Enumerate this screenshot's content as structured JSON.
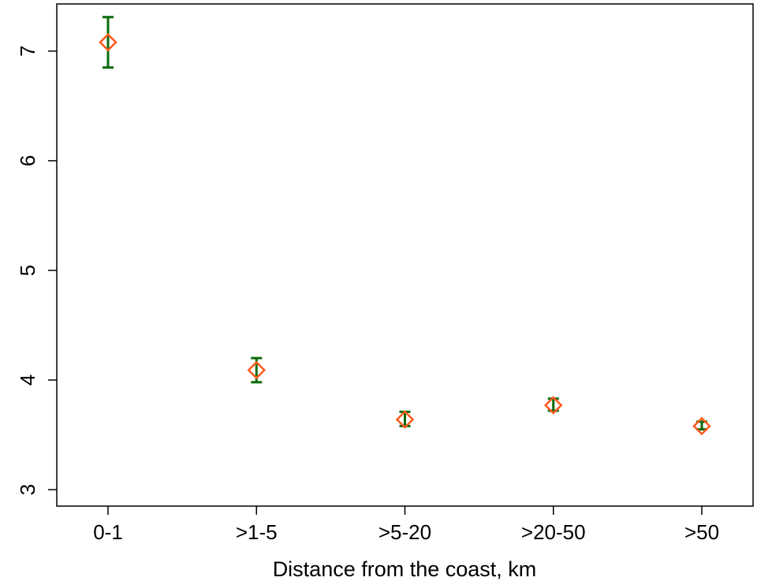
{
  "chart_data": {
    "type": "scatter",
    "title": "",
    "xlabel": "Distance from the coast, km",
    "ylabel": "",
    "categories": [
      "0-1",
      ">1-5",
      ">5-20",
      ">20-50",
      ">50"
    ],
    "values": [
      7.08,
      4.09,
      3.64,
      3.77,
      3.58
    ],
    "error_low": [
      6.85,
      3.98,
      3.58,
      3.72,
      3.55
    ],
    "error_high": [
      7.31,
      4.2,
      3.71,
      3.83,
      3.62
    ],
    "ylim": [
      2.85,
      7.43
    ],
    "yticks": [
      "3",
      "4",
      "5",
      "6",
      "7"
    ],
    "grid": false,
    "colors": {
      "marker": "#ff5a1f",
      "error_bar": "#0a6b0a",
      "axis": "#000000"
    }
  }
}
